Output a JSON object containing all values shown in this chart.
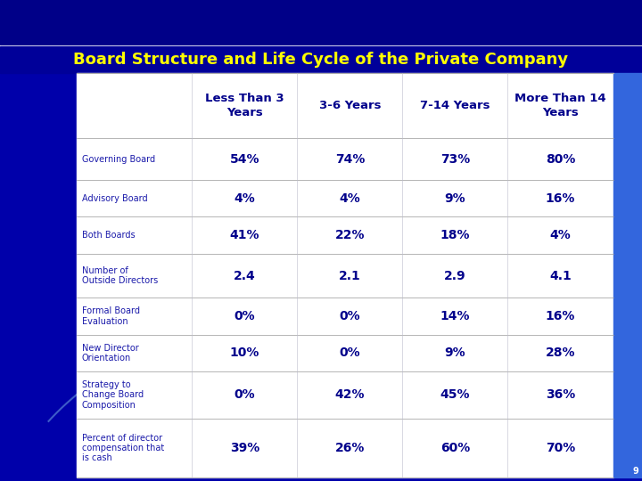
{
  "title": "Board Structure and Life Cycle of the Private Company",
  "col_headers": [
    "Less Than 3\nYears",
    "3-6 Years",
    "7-14 Years",
    "More Than 14\nYears"
  ],
  "row_labels": [
    "Governing Board",
    "Advisory Board",
    "Both Boards",
    "Number of\nOutside Directors",
    "Formal Board\nEvaluation",
    "New Director\nOrientation",
    "Strategy to\nChange Board\nComposition",
    "Percent of director\ncompensation that\nis cash"
  ],
  "data": [
    [
      "54%",
      "74%",
      "73%",
      "80%"
    ],
    [
      "4%",
      "4%",
      "9%",
      "16%"
    ],
    [
      "41%",
      "22%",
      "18%",
      "4%"
    ],
    [
      "2.4",
      "2.1",
      "2.9",
      "4.1"
    ],
    [
      "0%",
      "0%",
      "14%",
      "16%"
    ],
    [
      "10%",
      "0%",
      "9%",
      "28%"
    ],
    [
      "0%",
      "42%",
      "45%",
      "36%"
    ],
    [
      "39%",
      "26%",
      "60%",
      "70%"
    ]
  ],
  "title_color": "#ffff00",
  "title_bar_color": "#000099",
  "header_text_color": "#00008B",
  "row_label_color": "#1a1aaa",
  "data_color": "#00008B",
  "slide_bg_color": "#0000aa",
  "table_bg": "#ffffff",
  "line_color": "#aaaacc",
  "right_bar_color": "#3366dd",
  "arc_color": "#6699dd",
  "row_label_font": 7.0,
  "data_font": 10,
  "header_font": 9.5,
  "title_font": 13
}
